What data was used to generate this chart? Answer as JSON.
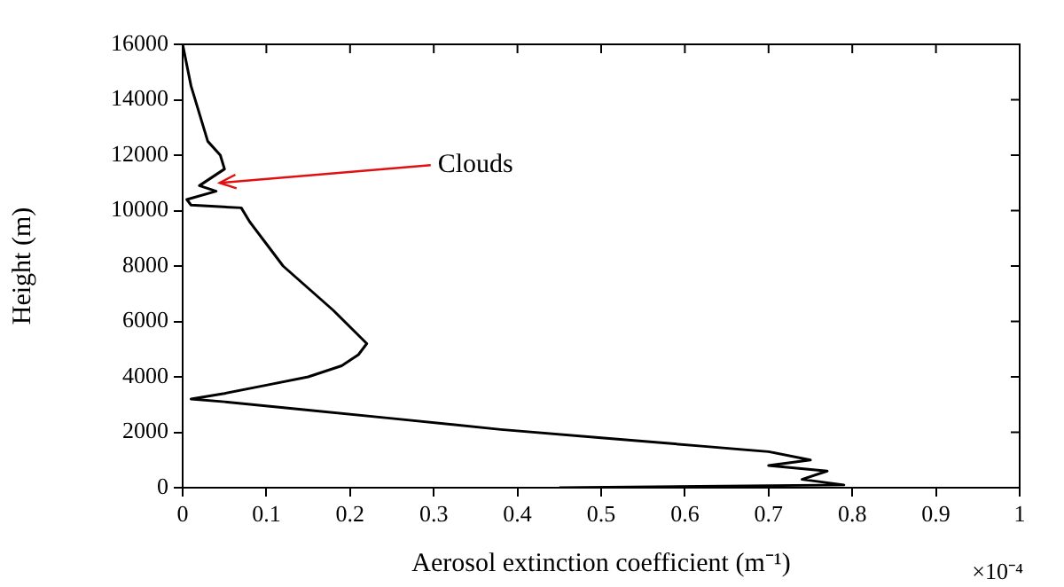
{
  "chart_data": {
    "type": "line",
    "xlabel": "Aerosol extinction coefficient (m⁻¹)",
    "ylabel": "Height (m)",
    "series": [
      {
        "color": "#000000",
        "x": [
          0.45,
          0.79,
          0.74,
          0.77,
          0.7,
          0.75,
          0.7,
          0.62,
          0.5,
          0.38,
          0.25,
          0.15,
          0.05,
          0.01,
          0.05,
          0.1,
          0.15,
          0.19,
          0.21,
          0.22,
          0.2,
          0.18,
          0.15,
          0.12,
          0.1,
          0.08,
          0.07,
          0.01,
          0.005,
          0.04,
          0.02,
          0.03,
          0.05,
          0.045,
          0.03,
          0.02,
          0.01,
          0
        ],
        "values": [
          0,
          100,
          300,
          600,
          800,
          1000,
          1300,
          1500,
          1800,
          2100,
          2500,
          2800,
          3100,
          3200,
          3400,
          3700,
          4000,
          4400,
          4800,
          5200,
          5800,
          6400,
          7200,
          8000,
          8800,
          9600,
          10100,
          10200,
          10400,
          10700,
          10900,
          11100,
          11500,
          12000,
          12500,
          13500,
          14500,
          16000
        ]
      }
    ],
    "xlim": [
      0,
      1
    ],
    "xticks": [
      0,
      0.1,
      0.2,
      0.3,
      0.4,
      0.5,
      0.6,
      0.7,
      0.8,
      0.9,
      1
    ],
    "ylim": [
      0,
      16000
    ],
    "yticks": [
      0,
      2000,
      4000,
      6000,
      8000,
      10000,
      12000,
      14000,
      16000
    ],
    "grid": false,
    "legend": false,
    "marker": "none",
    "line_style": "solid",
    "annotations": [
      {
        "text": "Clouds",
        "x": 0.04,
        "y": 11000
      },
      "×10⁻⁴"
    ]
  }
}
